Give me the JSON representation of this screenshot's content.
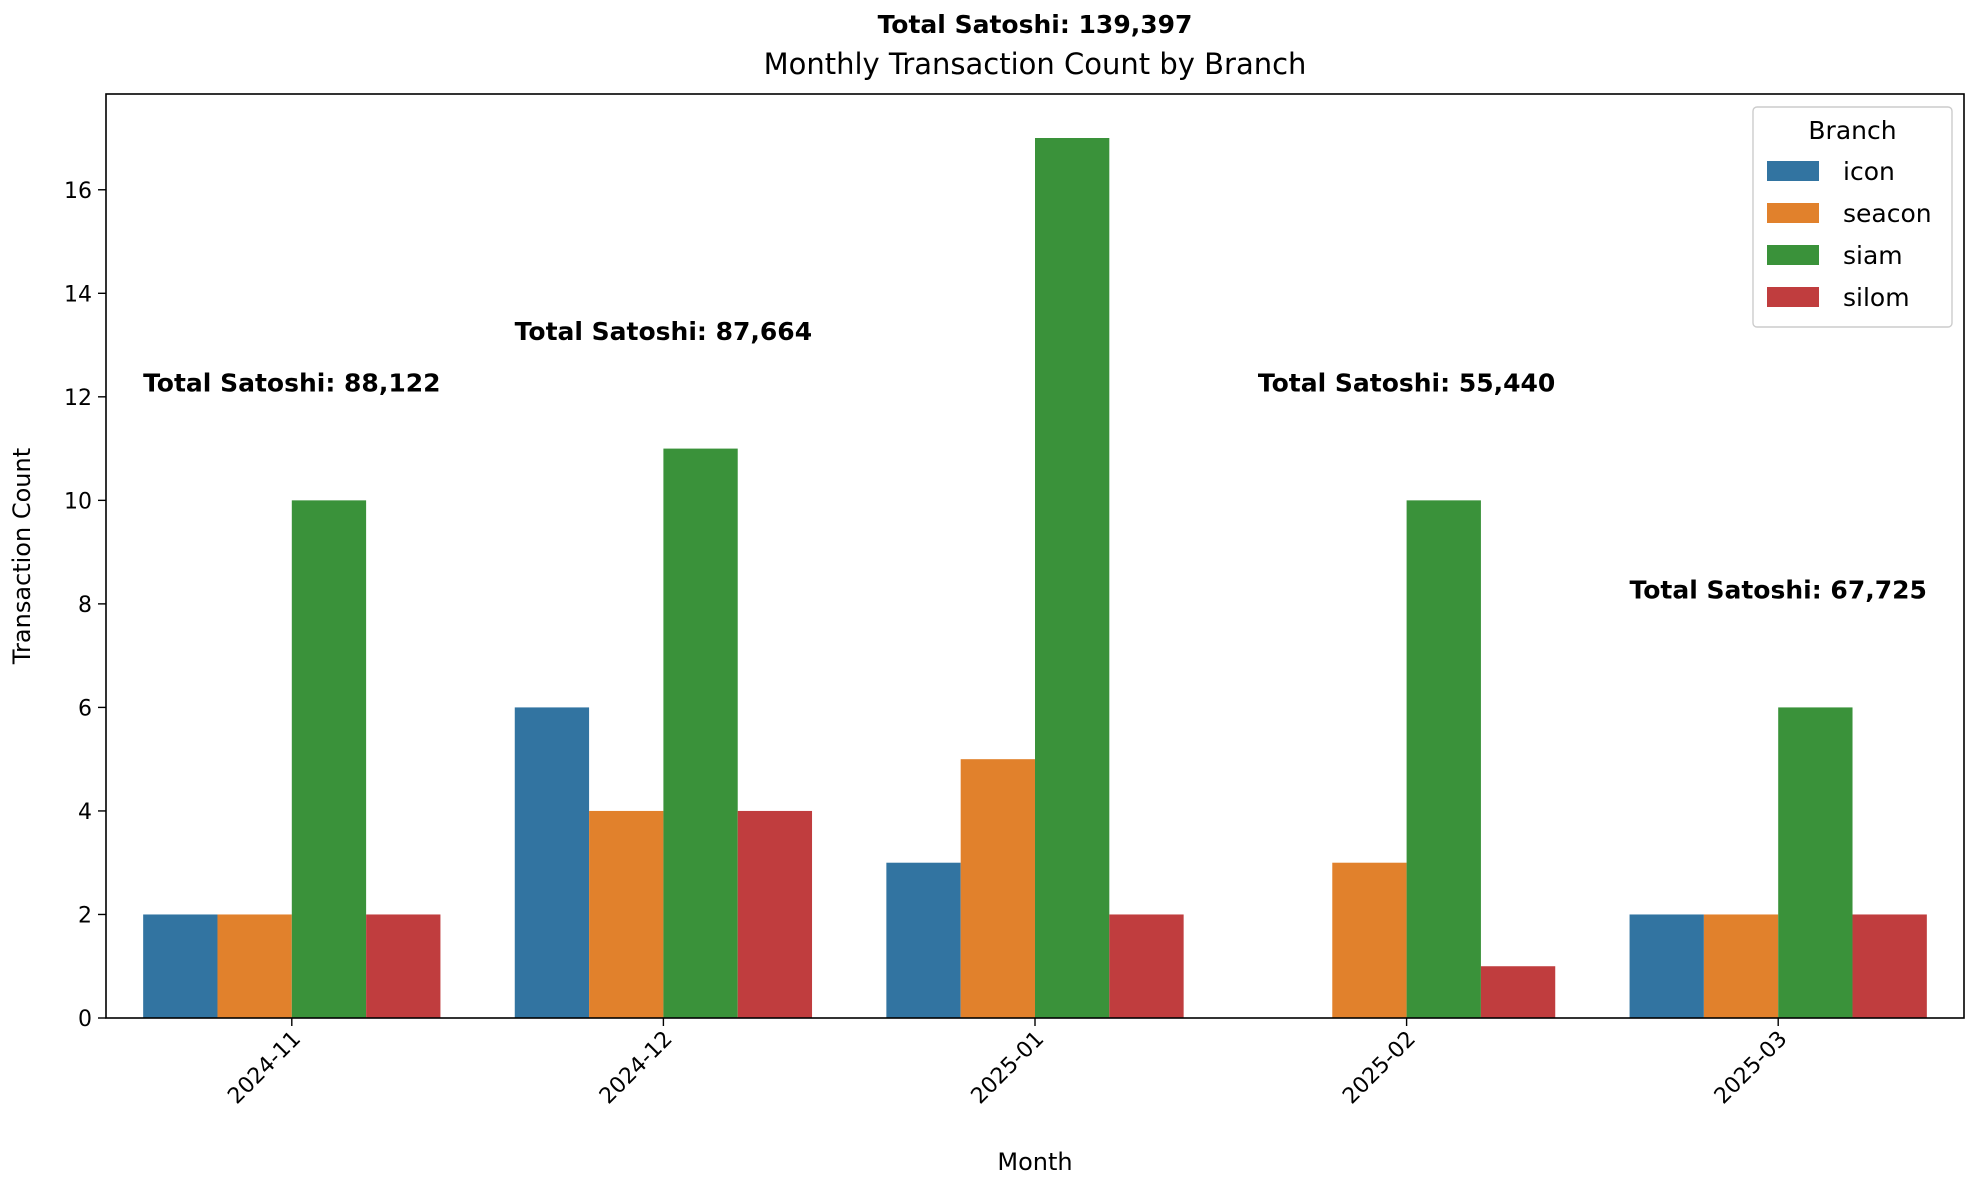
{
  "chart_data": {
    "type": "bar",
    "title": "Monthly Transaction Count by Branch",
    "suptitle": "Total Satoshi: 139,397",
    "xlabel": "Month",
    "ylabel": "Transaction Count",
    "categories": [
      "2024-11",
      "2024-12",
      "2025-01",
      "2025-02",
      "2025-03"
    ],
    "series": [
      {
        "name": "icon",
        "color": "#3274a1",
        "values": [
          2,
          6,
          3,
          0,
          2
        ]
      },
      {
        "name": "seacon",
        "color": "#e1812c",
        "values": [
          2,
          4,
          5,
          3,
          2
        ]
      },
      {
        "name": "siam",
        "color": "#3a923a",
        "values": [
          10,
          11,
          17,
          10,
          6
        ]
      },
      {
        "name": "silom",
        "color": "#c03d3e",
        "values": [
          2,
          4,
          2,
          1,
          2
        ]
      }
    ],
    "ylim": [
      0,
      17.85
    ],
    "yticks": [
      0,
      2,
      4,
      6,
      8,
      10,
      12,
      14,
      16
    ],
    "x_tick_rotation": 45,
    "grid": false,
    "legend": {
      "title": "Branch",
      "placement": "top-right"
    },
    "annotations": [
      {
        "text": "Total Satoshi: 88,122",
        "category": "2024-11",
        "y": 12.1
      },
      {
        "text": "Total Satoshi: 87,664",
        "category": "2024-12",
        "y": 13.1
      },
      {
        "text": "Total Satoshi: 55,440",
        "category": "2025-02",
        "y": 12.1
      },
      {
        "text": "Total Satoshi: 67,725",
        "category": "2025-03",
        "y": 8.1
      }
    ]
  }
}
